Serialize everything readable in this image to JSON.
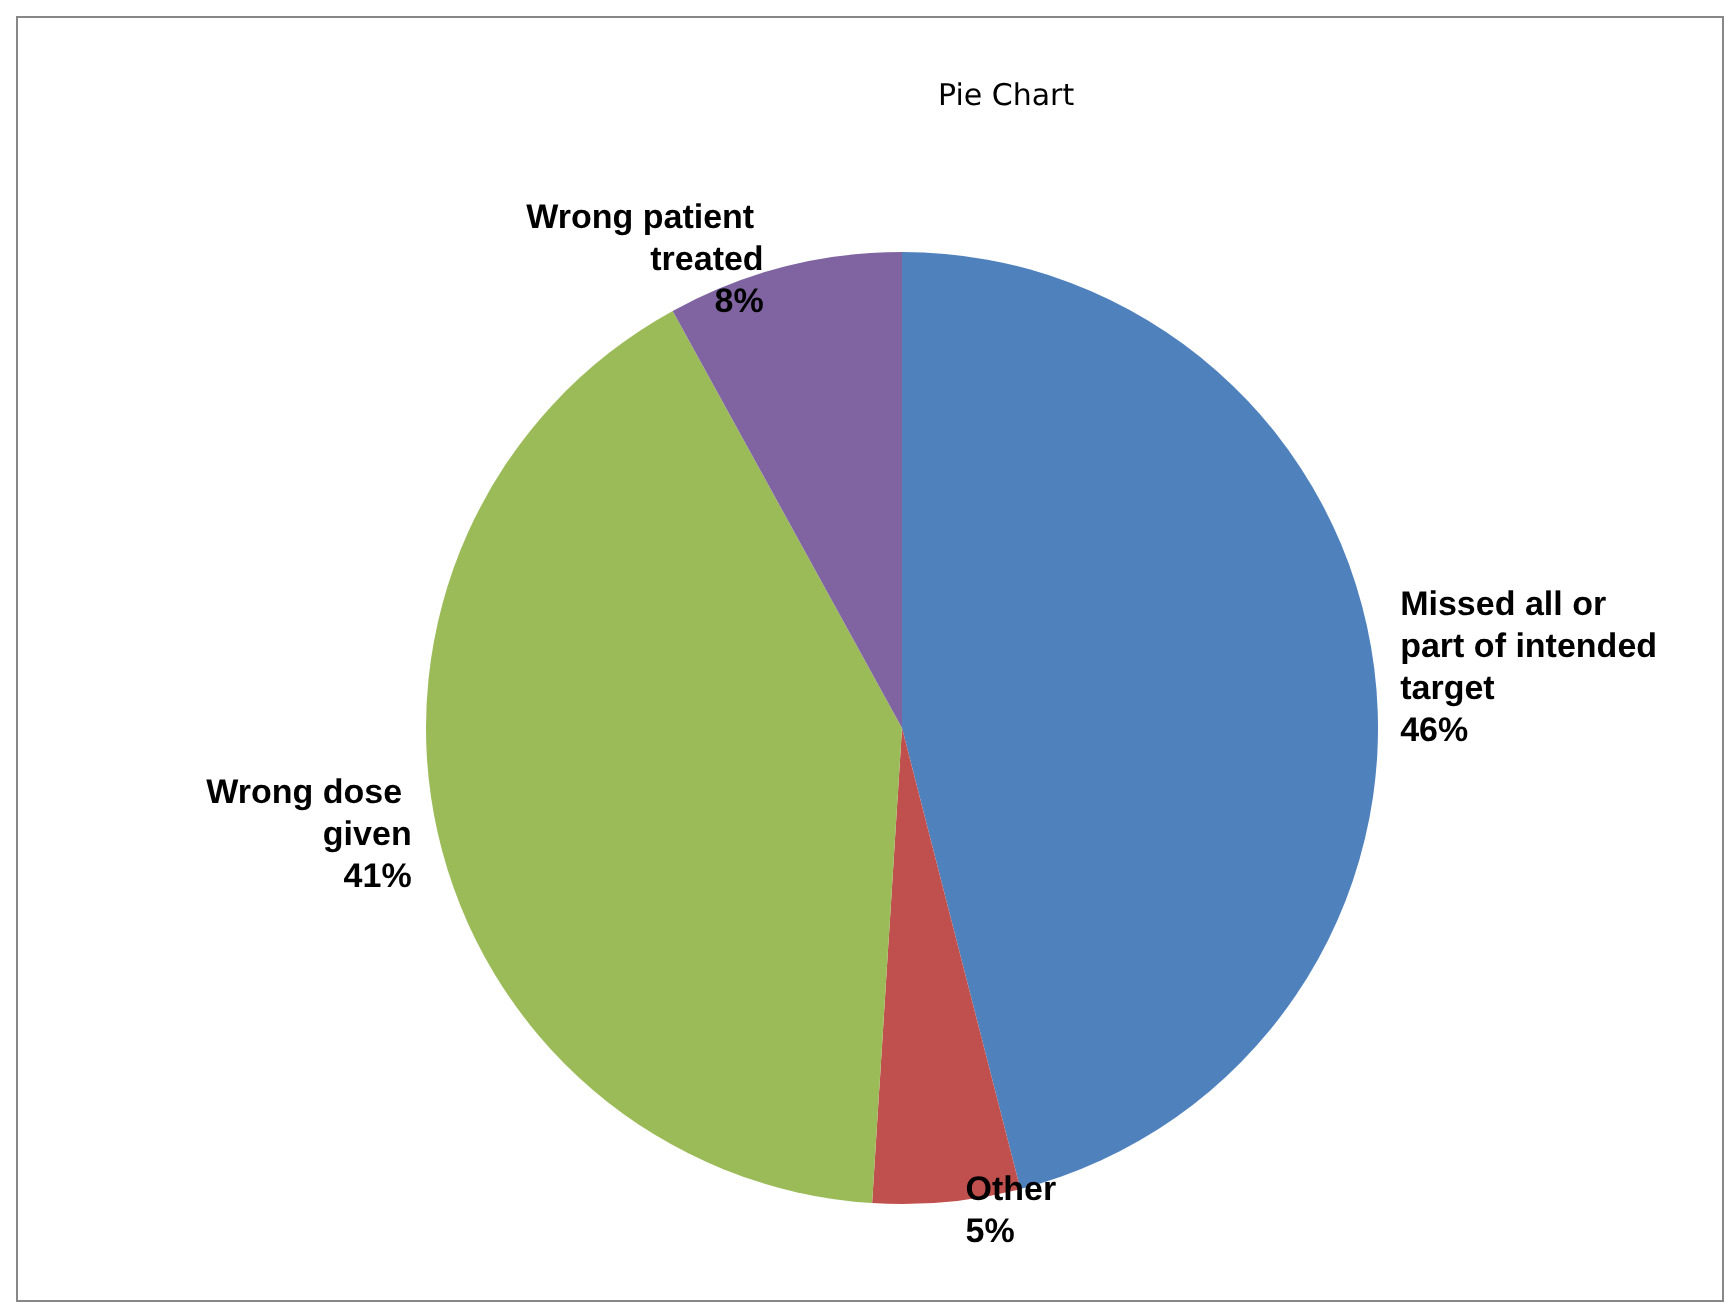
{
  "chart_data": {
    "type": "pie",
    "title": "Pie Chart",
    "categories": [
      "Missed all or part of intended target",
      "Other",
      "Wrong dose given",
      "Wrong patient treated"
    ],
    "values": [
      46,
      5,
      41,
      8
    ],
    "colors": [
      "#4f81bd",
      "#c0504d",
      "#9bbb59",
      "#8064a2"
    ],
    "value_labels": [
      "46%",
      "5%",
      "41%",
      "8%"
    ],
    "legend": false
  }
}
